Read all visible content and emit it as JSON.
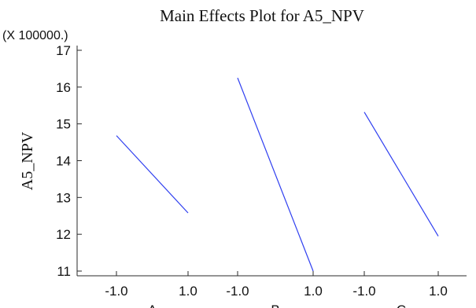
{
  "chart_data": {
    "type": "line",
    "title": "Main Effects Plot for A5_NPV",
    "multiplier": "(X 100000.)",
    "ylabel": "A5_NPV",
    "ylim": [
      11,
      17
    ],
    "yticks": [
      11,
      12,
      13,
      14,
      15,
      16,
      17
    ],
    "ytick_labels": [
      "11",
      "12",
      "13",
      "14",
      "15",
      "16",
      "17"
    ],
    "x_levels": [
      -1.0,
      1.0
    ],
    "x_tick_labels": [
      "-1.0",
      "1.0"
    ],
    "grid": false,
    "legend": "none",
    "line_color": "#2f3ff0",
    "factors": [
      {
        "name": "A",
        "values": [
          14.68,
          12.58
        ]
      },
      {
        "name": "B",
        "values": [
          16.25,
          11.0
        ]
      },
      {
        "name": "C",
        "values": [
          15.32,
          11.95
        ]
      }
    ]
  }
}
